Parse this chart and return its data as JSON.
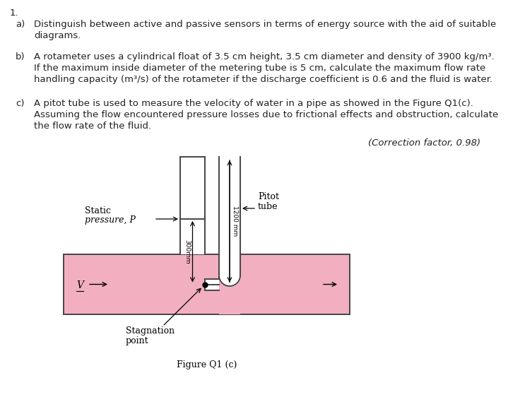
{
  "bg_color": "#ffffff",
  "text_color": "#222222",
  "pipe_fill_color": "#f2afc0",
  "pipe_outline_color": "#444444",
  "question_number": "1.",
  "part_a_label": "a)",
  "part_a_text_line1": "Distinguish between active and passive sensors in terms of energy source with the aid of suitable",
  "part_a_text_line2": "    diagrams.",
  "part_b_label": "b)",
  "part_b_text_line1": "A rotameter uses a cylindrical float of 3.5 cm height, 3.5 cm diameter and density of 3900 kg/m³.",
  "part_b_text_line2": "    If the maximum inside diameter of the metering tube is 5 cm, calculate the maximum flow rate",
  "part_b_text_line3": "    handling capacity (m³/s) of the rotameter if the discharge coefficient is 0.6 and the fluid is water.",
  "part_c_label": "c)",
  "part_c_text_line1": "A pitot tube is used to measure the velocity of water in a pipe as showed in the Figure Q1(c).",
  "part_c_text_line2": "    Assuming the flow encountered pressure losses due to frictional effects and obstruction, calculate",
  "part_c_text_line3": "    the flow rate of the fluid.",
  "correction_factor": "(Correction factor, 0.98)",
  "label_static_line1": "Static",
  "label_static_line2": "pressure, P",
  "label_pitot_line1": "Pitot",
  "label_pitot_line2": "tube",
  "label_stagnation_line1": "Stagnation",
  "label_stagnation_line2": "point",
  "label_v": "V",
  "dim_1200": "1200 mm",
  "dim_300": "300mm",
  "figure_caption": "Figure Q1 (c)"
}
